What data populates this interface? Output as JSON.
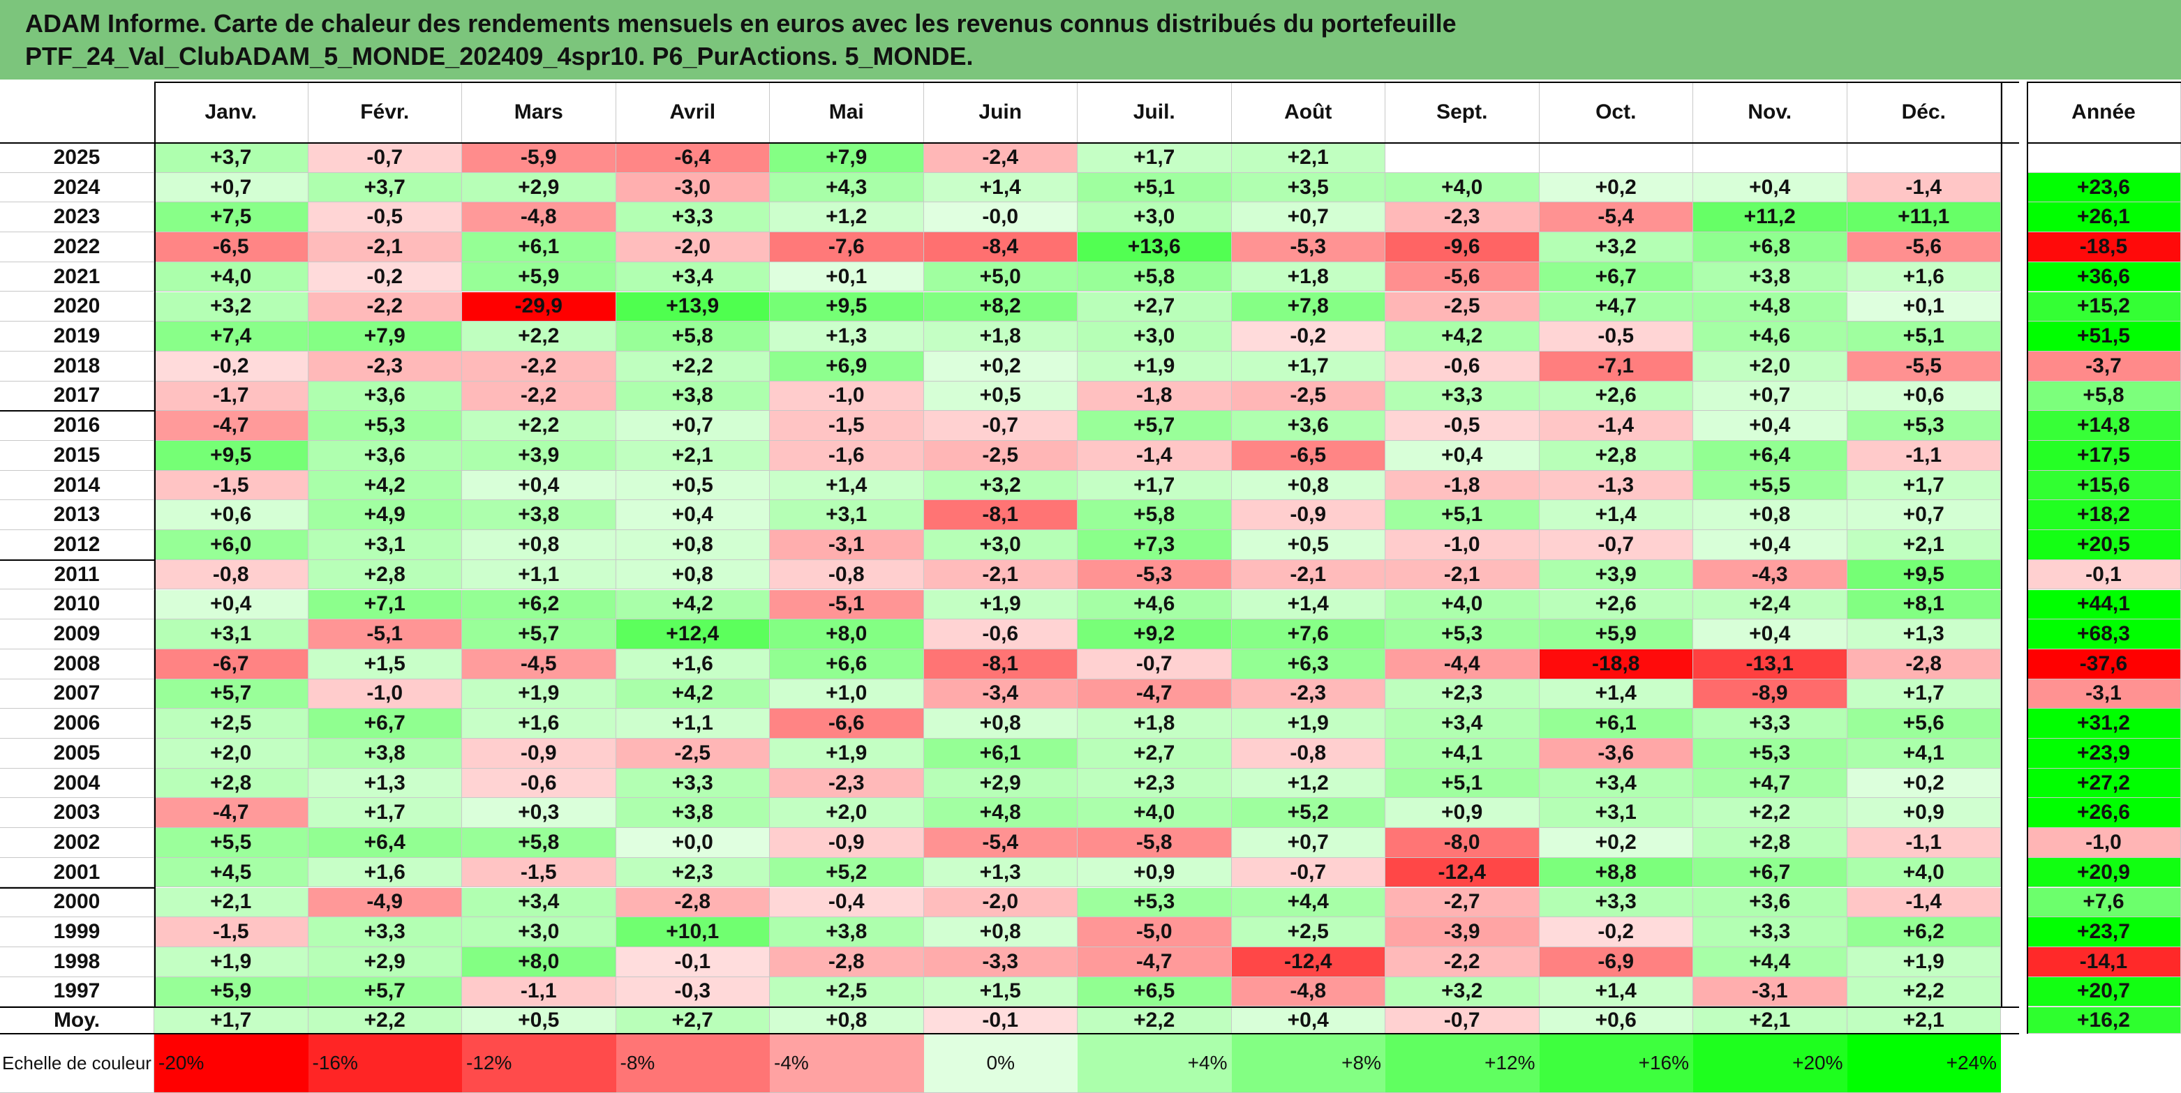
{
  "title": {
    "line1": "ADAM Informe. Carte de chaleur des rendements mensuels en euros avec les revenus connus distribués du portefeuille",
    "line2": "PTF_24_Val_ClubADAM_5_MONDE_202409_4spr10. P6_PurActions. 5_MONDE."
  },
  "colors": {
    "banner": "#7cc57c",
    "worst": "#ff0000",
    "best": "#00ff00",
    "neutral": "#ffffff"
  },
  "chart_data": {
    "type": "heatmap",
    "x_categories": [
      "Janv.",
      "Févr.",
      "Mars",
      "Avril",
      "Mai",
      "Juin",
      "Juil.",
      "Août",
      "Sept.",
      "Oct.",
      "Nov.",
      "Déc."
    ],
    "year_header": "Année",
    "rows": [
      {
        "label": "2025",
        "values": [
          "+3,7",
          "-0,7",
          "-5,9",
          "-6,4",
          "+7,9",
          "-2,4",
          "+1,7",
          "+2,1",
          "",
          "",
          "",
          ""
        ],
        "year": ""
      },
      {
        "label": "2024",
        "values": [
          "+0,7",
          "+3,7",
          "+2,9",
          "-3,0",
          "+4,3",
          "+1,4",
          "+5,1",
          "+3,5",
          "+4,0",
          "+0,2",
          "+0,4",
          "-1,4"
        ],
        "year": "+23,6"
      },
      {
        "label": "2023",
        "values": [
          "+7,5",
          "-0,5",
          "-4,8",
          "+3,3",
          "+1,2",
          "-0,0",
          "+3,0",
          "+0,7",
          "-2,3",
          "-5,4",
          "+11,2",
          "+11,1"
        ],
        "year": "+26,1"
      },
      {
        "label": "2022",
        "values": [
          "-6,5",
          "-2,1",
          "+6,1",
          "-2,0",
          "-7,6",
          "-8,4",
          "+13,6",
          "-5,3",
          "-9,6",
          "+3,2",
          "+6,8",
          "-5,6"
        ],
        "year": "-18,5"
      },
      {
        "label": "2021",
        "values": [
          "+4,0",
          "-0,2",
          "+5,9",
          "+3,4",
          "+0,1",
          "+5,0",
          "+5,8",
          "+1,8",
          "-5,6",
          "+6,7",
          "+3,8",
          "+1,6"
        ],
        "year": "+36,6"
      },
      {
        "label": "2020",
        "values": [
          "+3,2",
          "-2,2",
          "-29,9",
          "+13,9",
          "+9,5",
          "+8,2",
          "+2,7",
          "+7,8",
          "-2,5",
          "+4,7",
          "+4,8",
          "+0,1"
        ],
        "year": "+15,2"
      },
      {
        "label": "2019",
        "values": [
          "+7,4",
          "+7,9",
          "+2,2",
          "+5,8",
          "+1,3",
          "+1,8",
          "+3,0",
          "-0,2",
          "+4,2",
          "-0,5",
          "+4,6",
          "+5,1"
        ],
        "year": "+51,5"
      },
      {
        "label": "2018",
        "values": [
          "-0,2",
          "-2,3",
          "-2,2",
          "+2,2",
          "+6,9",
          "+0,2",
          "+1,9",
          "+1,7",
          "-0,6",
          "-7,1",
          "+2,0",
          "-5,5"
        ],
        "year": "-3,7"
      },
      {
        "label": "2017",
        "values": [
          "-1,7",
          "+3,6",
          "-2,2",
          "+3,8",
          "-1,0",
          "+0,5",
          "-1,8",
          "-2,5",
          "+3,3",
          "+2,6",
          "+0,7",
          "+0,6"
        ],
        "year": "+5,8"
      },
      {
        "label": "2016",
        "values": [
          "-4,7",
          "+5,3",
          "+2,2",
          "+0,7",
          "-1,5",
          "-0,7",
          "+5,7",
          "+3,6",
          "-0,5",
          "-1,4",
          "+0,4",
          "+5,3"
        ],
        "year": "+14,8"
      },
      {
        "label": "2015",
        "values": [
          "+9,5",
          "+3,6",
          "+3,9",
          "+2,1",
          "-1,6",
          "-2,5",
          "-1,4",
          "-6,5",
          "+0,4",
          "+2,8",
          "+6,4",
          "-1,1"
        ],
        "year": "+17,5"
      },
      {
        "label": "2014",
        "values": [
          "-1,5",
          "+4,2",
          "+0,4",
          "+0,5",
          "+1,4",
          "+3,2",
          "+1,7",
          "+0,8",
          "-1,8",
          "-1,3",
          "+5,5",
          "+1,7"
        ],
        "year": "+15,6"
      },
      {
        "label": "2013",
        "values": [
          "+0,6",
          "+4,9",
          "+3,8",
          "+0,4",
          "+3,1",
          "-8,1",
          "+5,8",
          "-0,9",
          "+5,1",
          "+1,4",
          "+0,8",
          "+0,7"
        ],
        "year": "+18,2"
      },
      {
        "label": "2012",
        "values": [
          "+6,0",
          "+3,1",
          "+0,8",
          "+0,8",
          "-3,1",
          "+3,0",
          "+7,3",
          "+0,5",
          "-1,0",
          "-0,7",
          "+0,4",
          "+2,1"
        ],
        "year": "+20,5"
      },
      {
        "label": "2011",
        "values": [
          "-0,8",
          "+2,8",
          "+1,1",
          "+0,8",
          "-0,8",
          "-2,1",
          "-5,3",
          "-2,1",
          "-2,1",
          "+3,9",
          "-4,3",
          "+9,5"
        ],
        "year": "-0,1"
      },
      {
        "label": "2010",
        "values": [
          "+0,4",
          "+7,1",
          "+6,2",
          "+4,2",
          "-5,1",
          "+1,9",
          "+4,6",
          "+1,4",
          "+4,0",
          "+2,6",
          "+2,4",
          "+8,1"
        ],
        "year": "+44,1"
      },
      {
        "label": "2009",
        "values": [
          "+3,1",
          "-5,1",
          "+5,7",
          "+12,4",
          "+8,0",
          "-0,6",
          "+9,2",
          "+7,6",
          "+5,3",
          "+5,9",
          "+0,4",
          "+1,3"
        ],
        "year": "+68,3"
      },
      {
        "label": "2008",
        "values": [
          "-6,7",
          "+1,5",
          "-4,5",
          "+1,6",
          "+6,6",
          "-8,1",
          "-0,7",
          "+6,3",
          "-4,4",
          "-18,8",
          "-13,1",
          "-2,8"
        ],
        "year": "-37,6"
      },
      {
        "label": "2007",
        "values": [
          "+5,7",
          "-1,0",
          "+1,9",
          "+4,2",
          "+1,0",
          "-3,4",
          "-4,7",
          "-2,3",
          "+2,3",
          "+1,4",
          "-8,9",
          "+1,7"
        ],
        "year": "-3,1"
      },
      {
        "label": "2006",
        "values": [
          "+2,5",
          "+6,7",
          "+1,6",
          "+1,1",
          "-6,6",
          "+0,8",
          "+1,8",
          "+1,9",
          "+3,4",
          "+6,1",
          "+3,3",
          "+5,6"
        ],
        "year": "+31,2"
      },
      {
        "label": "2005",
        "values": [
          "+2,0",
          "+3,8",
          "-0,9",
          "-2,5",
          "+1,9",
          "+6,1",
          "+2,7",
          "-0,8",
          "+4,1",
          "-3,6",
          "+5,3",
          "+4,1"
        ],
        "year": "+23,9"
      },
      {
        "label": "2004",
        "values": [
          "+2,8",
          "+1,3",
          "-0,6",
          "+3,3",
          "-2,3",
          "+2,9",
          "+2,3",
          "+1,2",
          "+5,1",
          "+3,4",
          "+4,7",
          "+0,2"
        ],
        "year": "+27,2"
      },
      {
        "label": "2003",
        "values": [
          "-4,7",
          "+1,7",
          "+0,3",
          "+3,8",
          "+2,0",
          "+4,8",
          "+4,0",
          "+5,2",
          "+0,9",
          "+3,1",
          "+2,2",
          "+0,9"
        ],
        "year": "+26,6"
      },
      {
        "label": "2002",
        "values": [
          "+5,5",
          "+6,4",
          "+5,8",
          "+0,0",
          "-0,9",
          "-5,4",
          "-5,8",
          "+0,7",
          "-8,0",
          "+0,2",
          "+2,8",
          "-1,1"
        ],
        "year": "-1,0"
      },
      {
        "label": "2001",
        "values": [
          "+4,5",
          "+1,6",
          "-1,5",
          "+2,3",
          "+5,2",
          "+1,3",
          "+0,9",
          "-0,7",
          "-12,4",
          "+8,8",
          "+6,7",
          "+4,0"
        ],
        "year": "+20,9"
      },
      {
        "label": "2000",
        "values": [
          "+2,1",
          "-4,9",
          "+3,4",
          "-2,8",
          "-0,4",
          "-2,0",
          "+5,3",
          "+4,4",
          "-2,7",
          "+3,3",
          "+3,6",
          "-1,4"
        ],
        "year": "+7,6"
      },
      {
        "label": "1999",
        "values": [
          "-1,5",
          "+3,3",
          "+3,0",
          "+10,1",
          "+3,8",
          "+0,8",
          "-5,0",
          "+2,5",
          "-3,9",
          "-0,2",
          "+3,3",
          "+6,2"
        ],
        "year": "+23,7"
      },
      {
        "label": "1998",
        "values": [
          "+1,9",
          "+2,9",
          "+8,0",
          "-0,1",
          "-2,8",
          "-3,3",
          "-4,7",
          "-12,4",
          "-2,2",
          "-6,9",
          "+4,4",
          "+1,9"
        ],
        "year": "-14,1"
      },
      {
        "label": "1997",
        "values": [
          "+5,9",
          "+5,7",
          "-1,1",
          "-0,3",
          "+2,5",
          "+1,5",
          "+6,5",
          "-4,8",
          "+3,2",
          "+1,4",
          "-3,1",
          "+2,2"
        ],
        "year": "+20,7"
      }
    ],
    "average": {
      "label": "Moy.",
      "values": [
        "+1,7",
        "+2,2",
        "+0,5",
        "+2,7",
        "+0,8",
        "-0,1",
        "+2,2",
        "+0,4",
        "-0,7",
        "+0,6",
        "+2,1",
        "+2,1"
      ],
      "year": "+16,2"
    },
    "color_scale": {
      "label": "Echelle de couleur",
      "steps": [
        "-20%",
        "-16%",
        "-12%",
        "-8%",
        "-4%",
        "0%",
        "+4%",
        "+8%",
        "+12%",
        "+16%",
        "+20%",
        "+24%"
      ],
      "values": [
        -20,
        -16,
        -12,
        -8,
        -4,
        0,
        4,
        8,
        12,
        16,
        20,
        24
      ]
    }
  }
}
